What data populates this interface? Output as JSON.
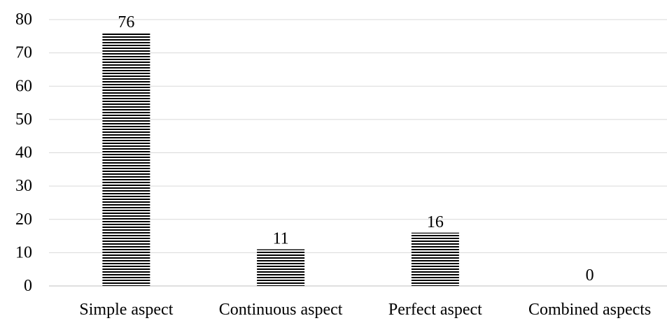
{
  "chart_data": {
    "type": "bar",
    "categories": [
      "Simple aspect",
      "Continuous aspect",
      "Perfect aspect",
      "Combined aspects"
    ],
    "values": [
      76,
      11,
      16,
      0
    ],
    "data_labels": [
      "76",
      "11",
      "16",
      "0"
    ],
    "title": "",
    "xlabel": "",
    "ylabel": "",
    "ylim": [
      0,
      80
    ],
    "yticks": [
      0,
      10,
      20,
      30,
      40,
      50,
      60,
      70,
      80
    ],
    "grid": true,
    "legend": "none",
    "bar_fill": "horizontal-stripes",
    "colors": {
      "bar": "#000000",
      "grid": "#d9d9d9",
      "axis": "#bfbfbf",
      "text": "#000000",
      "background": "#ffffff"
    }
  }
}
